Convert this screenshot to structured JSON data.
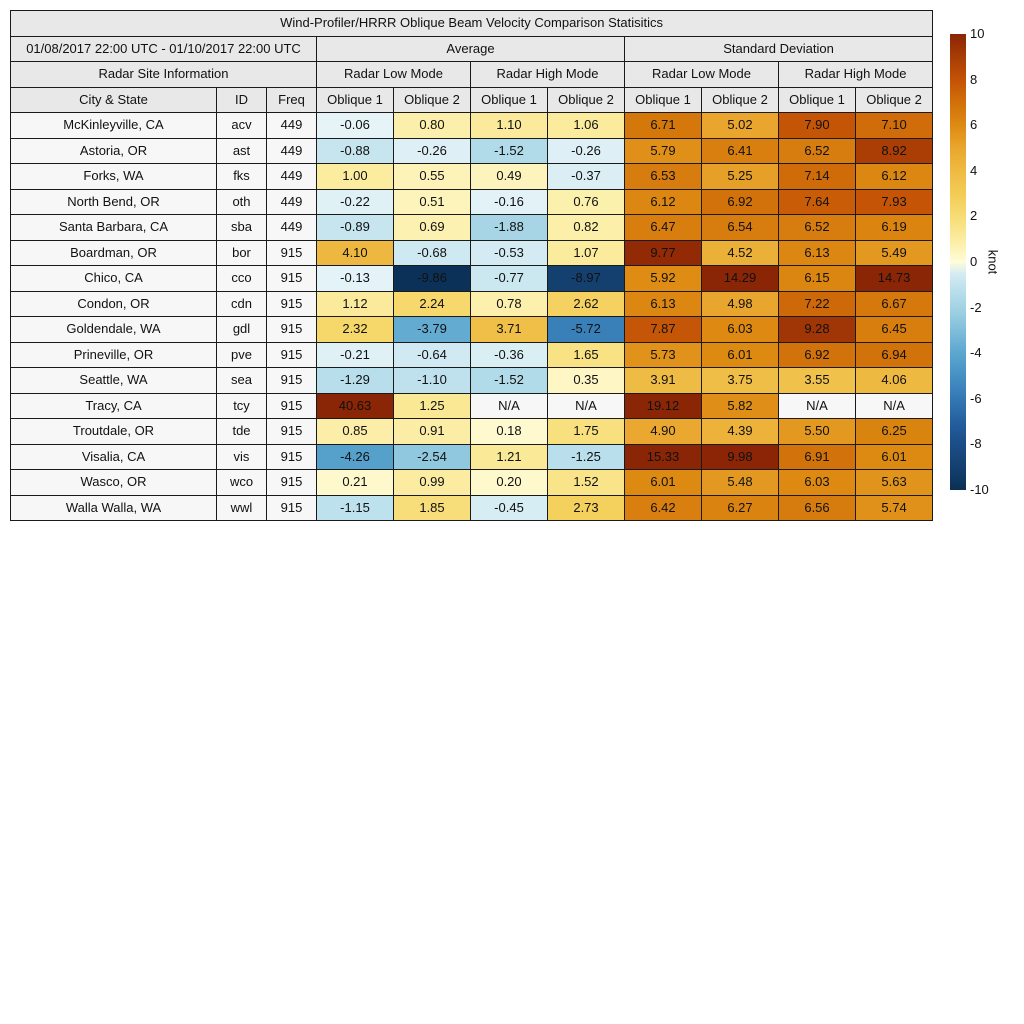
{
  "figure": {
    "title": "Wind-Profiler/HRRR Oblique Beam Velocity Comparison Statisitics",
    "date_range": "01/08/2017 22:00 UTC - 01/10/2017 22:00 UTC",
    "section_average": "Average",
    "section_stddev": "Standard Deviation",
    "site_info": "Radar Site Information",
    "radar_low_mode": "Radar Low Mode",
    "radar_high_mode": "Radar High Mode",
    "col_city": "City & State",
    "col_id": "ID",
    "col_freq": "Freq",
    "col_oblique1": "Oblique 1",
    "col_oblique2": "Oblique 2",
    "na_text": "N/A",
    "na_bg": "#f7f7f7",
    "header_bg": "#e8e8e8",
    "label_bg": "#f7f7f7"
  },
  "colorbar": {
    "label": "knot",
    "ticks": [
      "10",
      "8",
      "6",
      "4",
      "2",
      "0",
      "-2",
      "-4",
      "-6",
      "-8",
      "-10"
    ],
    "vmin": -10,
    "vmax": 10,
    "positive_colors": [
      "#fffcd8",
      "#fbeca0",
      "#f7dc74",
      "#f3cb55",
      "#eeba42",
      "#e9a62e",
      "#dd8a12",
      "#d1700a",
      "#c45206",
      "#a83c05",
      "#8a2505"
    ],
    "negative_colors": [
      "#e8f5f8",
      "#c2e3ee",
      "#a3d3e4",
      "#7fbeda",
      "#5ca6cf",
      "#4590c4",
      "#3478b3",
      "#255f9e",
      "#1b4d87",
      "#14406f",
      "#0b2f55"
    ]
  },
  "chart_data": {
    "type": "heatmap",
    "title": "Wind-Profiler/HRRR Oblique Beam Velocity Comparison Statisitics",
    "subtitle": "01/08/2017 22:00 UTC - 01/10/2017 22:00 UTC",
    "unit": "knot",
    "color_range": [
      -10,
      10
    ],
    "colorbar_ticks": [
      10,
      8,
      6,
      4,
      2,
      0,
      -2,
      -4,
      -6,
      -8,
      -10
    ],
    "column_keys": [
      "avg_low_oblique1",
      "avg_low_oblique2",
      "avg_high_oblique1",
      "avg_high_oblique2",
      "sd_low_oblique1",
      "sd_low_oblique2",
      "sd_high_oblique1",
      "sd_high_oblique2"
    ],
    "rows": [
      {
        "city": "McKinleyville, CA",
        "id": "acv",
        "freq": "449",
        "values": [
          "-0.06",
          "0.80",
          "1.10",
          "1.06",
          "6.71",
          "5.02",
          "7.90",
          "7.10"
        ]
      },
      {
        "city": "Astoria, OR",
        "id": "ast",
        "freq": "449",
        "values": [
          "-0.88",
          "-0.26",
          "-1.52",
          "-0.26",
          "5.79",
          "6.41",
          "6.52",
          "8.92"
        ]
      },
      {
        "city": "Forks, WA",
        "id": "fks",
        "freq": "449",
        "values": [
          "1.00",
          "0.55",
          "0.49",
          "-0.37",
          "6.53",
          "5.25",
          "7.14",
          "6.12"
        ]
      },
      {
        "city": "North Bend, OR",
        "id": "oth",
        "freq": "449",
        "values": [
          "-0.22",
          "0.51",
          "-0.16",
          "0.76",
          "6.12",
          "6.92",
          "7.64",
          "7.93"
        ]
      },
      {
        "city": "Santa Barbara, CA",
        "id": "sba",
        "freq": "449",
        "values": [
          "-0.89",
          "0.69",
          "-1.88",
          "0.82",
          "6.47",
          "6.54",
          "6.52",
          "6.19"
        ]
      },
      {
        "city": "Boardman, OR",
        "id": "bor",
        "freq": "915",
        "values": [
          "4.10",
          "-0.68",
          "-0.53",
          "1.07",
          "9.77",
          "4.52",
          "6.13",
          "5.49"
        ]
      },
      {
        "city": "Chico, CA",
        "id": "cco",
        "freq": "915",
        "values": [
          "-0.13",
          "-9.86",
          "-0.77",
          "-8.97",
          "5.92",
          "14.29",
          "6.15",
          "14.73"
        ]
      },
      {
        "city": "Condon, OR",
        "id": "cdn",
        "freq": "915",
        "values": [
          "1.12",
          "2.24",
          "0.78",
          "2.62",
          "6.13",
          "4.98",
          "7.22",
          "6.67"
        ]
      },
      {
        "city": "Goldendale, WA",
        "id": "gdl",
        "freq": "915",
        "values": [
          "2.32",
          "-3.79",
          "3.71",
          "-5.72",
          "7.87",
          "6.03",
          "9.28",
          "6.45"
        ]
      },
      {
        "city": "Prineville, OR",
        "id": "pve",
        "freq": "915",
        "values": [
          "-0.21",
          "-0.64",
          "-0.36",
          "1.65",
          "5.73",
          "6.01",
          "6.92",
          "6.94"
        ]
      },
      {
        "city": "Seattle, WA",
        "id": "sea",
        "freq": "915",
        "values": [
          "-1.29",
          "-1.10",
          "-1.52",
          "0.35",
          "3.91",
          "3.75",
          "3.55",
          "4.06"
        ]
      },
      {
        "city": "Tracy, CA",
        "id": "tcy",
        "freq": "915",
        "values": [
          "40.63",
          "1.25",
          "N/A",
          "N/A",
          "19.12",
          "5.82",
          "N/A",
          "N/A"
        ]
      },
      {
        "city": "Troutdale, OR",
        "id": "tde",
        "freq": "915",
        "values": [
          "0.85",
          "0.91",
          "0.18",
          "1.75",
          "4.90",
          "4.39",
          "5.50",
          "6.25"
        ]
      },
      {
        "city": "Visalia, CA",
        "id": "vis",
        "freq": "915",
        "values": [
          "-4.26",
          "-2.54",
          "1.21",
          "-1.25",
          "15.33",
          "9.98",
          "6.91",
          "6.01"
        ]
      },
      {
        "city": "Wasco, OR",
        "id": "wco",
        "freq": "915",
        "values": [
          "0.21",
          "0.99",
          "0.20",
          "1.52",
          "6.01",
          "5.48",
          "6.03",
          "5.63"
        ]
      },
      {
        "city": "Walla Walla, WA",
        "id": "wwl",
        "freq": "915",
        "values": [
          "-1.15",
          "1.85",
          "-0.45",
          "2.73",
          "6.42",
          "6.27",
          "6.56",
          "5.74"
        ]
      }
    ]
  }
}
